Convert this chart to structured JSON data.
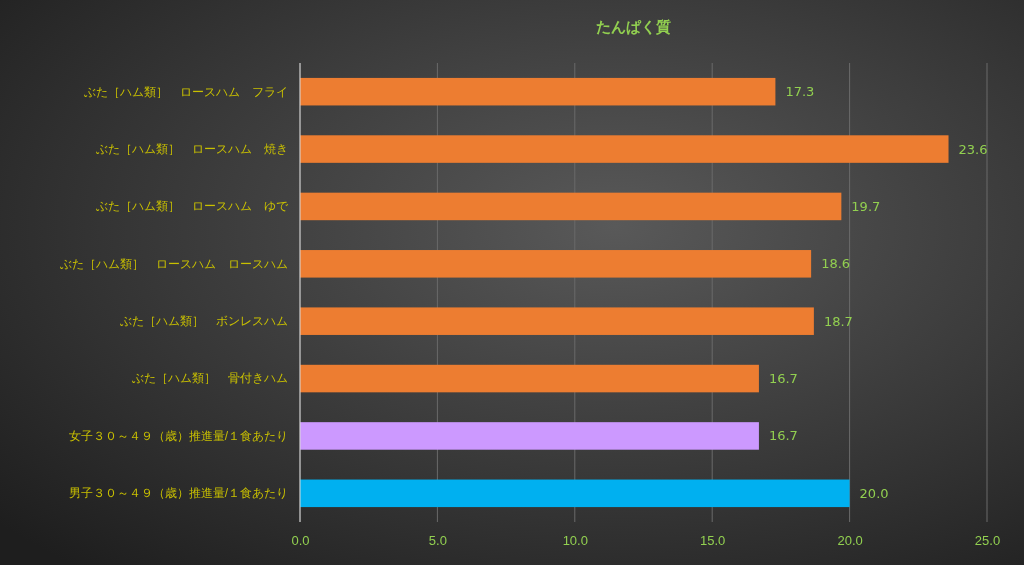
{
  "chart_data": {
    "type": "bar",
    "orientation": "horizontal",
    "title": "たんぱく質",
    "categories": [
      "ぶた［ハム類］　ロースハム　フライ",
      "ぶた［ハム類］　ロースハム　焼き",
      "ぶた［ハム類］　ロースハム　ゆで",
      "ぶた［ハム類］　ロースハム　ロースハム",
      "ぶた［ハム類］　ボンレスハム",
      "ぶた［ハム類］　骨付きハム",
      "女子３０～４９（歳）推進量/１食あたり",
      "男子３０～４９（歳）推進量/１食あたり"
    ],
    "values": [
      17.3,
      23.6,
      19.7,
      18.6,
      18.7,
      16.7,
      16.7,
      20.0
    ],
    "value_labels": [
      "17.3",
      "23.6",
      "19.7",
      "18.6",
      "18.7",
      "16.7",
      "16.7",
      "20.0"
    ],
    "colors": [
      "#ed7d31",
      "#ed7d31",
      "#ed7d31",
      "#ed7d31",
      "#ed7d31",
      "#ed7d31",
      "#cc99ff",
      "#00b0f0"
    ],
    "xlim": [
      0,
      25
    ],
    "xticks": [
      {
        "value": 0,
        "label": "0.0"
      },
      {
        "value": 5,
        "label": "5.0"
      },
      {
        "value": 10,
        "label": "10.0"
      },
      {
        "value": 15,
        "label": "15.0"
      },
      {
        "value": 20,
        "label": "20.0"
      },
      {
        "value": 25,
        "label": "25.0"
      }
    ],
    "grid": "x"
  }
}
